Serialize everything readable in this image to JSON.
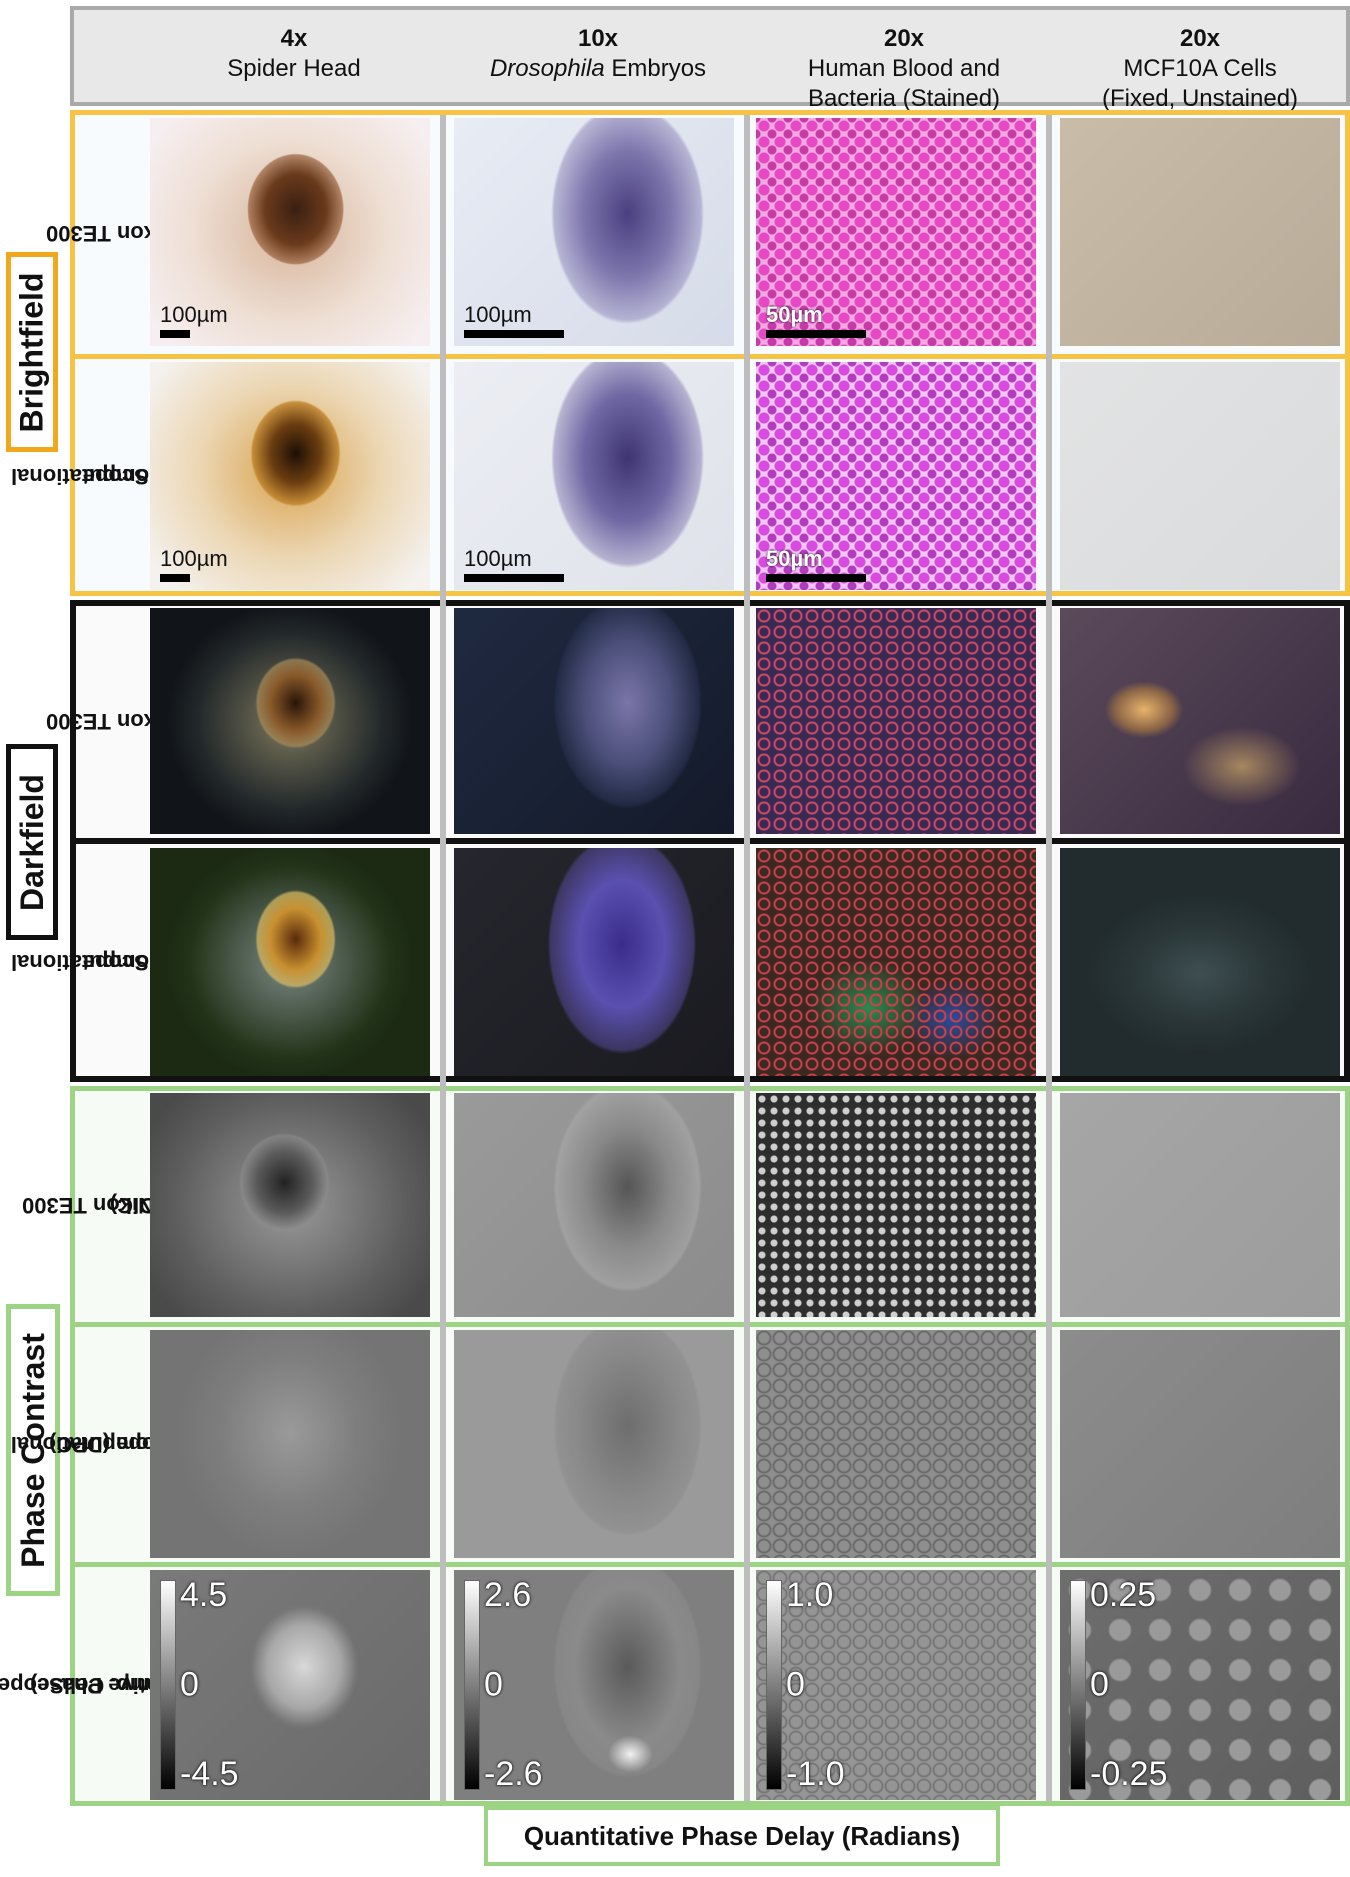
{
  "columns": [
    {
      "magnification": "4x",
      "sample_pre": "Spider Head",
      "sample_em": "",
      "sample_post": "",
      "sample_line2": ""
    },
    {
      "magnification": "10x",
      "sample_pre": "",
      "sample_em": "Drosophila",
      "sample_post": " Embryos",
      "sample_line2": ""
    },
    {
      "magnification": "20x",
      "sample_pre": "Human Blood and",
      "sample_em": "",
      "sample_post": "",
      "sample_line2": "Bacteria (Stained)"
    },
    {
      "magnification": "20x",
      "sample_pre": "MCF10A Cells",
      "sample_em": "",
      "sample_post": "",
      "sample_line2": "(Fixed, Unstained)"
    }
  ],
  "sections": {
    "brightfield": "Brightfield",
    "darkfield": "Darkfield",
    "phase_contrast": "Phase Contrast"
  },
  "rows": {
    "bf_nikon": {
      "line1": "Nikon TE300",
      "line2": ""
    },
    "bf_cs": {
      "line1": "Computational",
      "line2": "CellScope"
    },
    "df_nikon": {
      "line1": "Nikon TE300",
      "line2": ""
    },
    "df_cs": {
      "line1": "Computational",
      "line2": "CellScope"
    },
    "pc_nikon": {
      "line1": "Nikon TE300",
      "line2": "(DIC)"
    },
    "pc_cs": {
      "line1": "Computational",
      "line2": "CellScope (DPC)"
    },
    "pc_qp": {
      "line1": "Comp. CellScope",
      "line2": "(Quantitative Phase)"
    }
  },
  "scale_bars": {
    "spider": "100µm",
    "embryo": "100µm",
    "blood": "50µm"
  },
  "colorbars": [
    {
      "max": "4.5",
      "mid": "0",
      "min": "-4.5"
    },
    {
      "max": "2.6",
      "mid": "0",
      "min": "-2.6"
    },
    {
      "max": "1.0",
      "mid": "0",
      "min": "-1.0"
    },
    {
      "max": "0.25",
      "mid": "0",
      "min": "-0.25"
    }
  ],
  "footer": "Quantitative Phase Delay (Radians)"
}
